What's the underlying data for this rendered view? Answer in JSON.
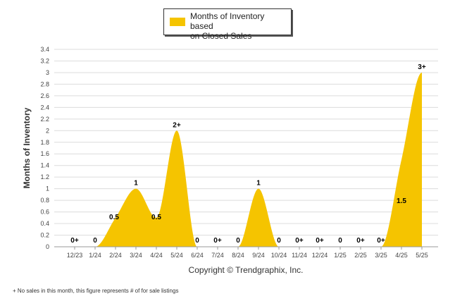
{
  "chart_data": {
    "type": "area",
    "ylabel": "Months of Inventory",
    "ylim": [
      0,
      3.4
    ],
    "yticks": [
      "0",
      "0.2",
      "0.4",
      "0.6",
      "0.8",
      "1",
      "1.2",
      "1.4",
      "1.6",
      "1.8",
      "2",
      "2.2",
      "2.4",
      "2.6",
      "2.8",
      "3",
      "3.2",
      "3.4"
    ],
    "categories": [
      "12/23",
      "1/24",
      "2/24",
      "3/24",
      "4/24",
      "5/24",
      "6/24",
      "7/24",
      "8/24",
      "9/24",
      "10/24",
      "11/24",
      "12/24",
      "1/25",
      "2/25",
      "3/25",
      "4/25",
      "5/25"
    ],
    "series": [
      {
        "name": "Months of Inventory based on Closed Sales",
        "color": "#F5C400",
        "values": [
          0,
          0,
          0.5,
          1,
          0.5,
          2,
          0,
          0,
          0,
          1,
          0,
          0,
          0,
          0,
          0,
          0,
          1.5,
          3
        ],
        "labels": [
          "0+",
          "0",
          "0.5",
          "1",
          "0.5",
          "2+",
          "0",
          "0+",
          "0",
          "1",
          "0",
          "0+",
          "0+",
          "0",
          "0+",
          "0+",
          "1.5",
          "3+"
        ]
      }
    ],
    "grid": true,
    "legend": "top-center"
  },
  "legend": {
    "label_line1": "Months of Inventory based",
    "label_line2": "on Closed Sales"
  },
  "copyright": "Copyright © Trendgraphix, Inc.",
  "footnote": "+  No sales in this month, this figure represents # of for sale listings"
}
